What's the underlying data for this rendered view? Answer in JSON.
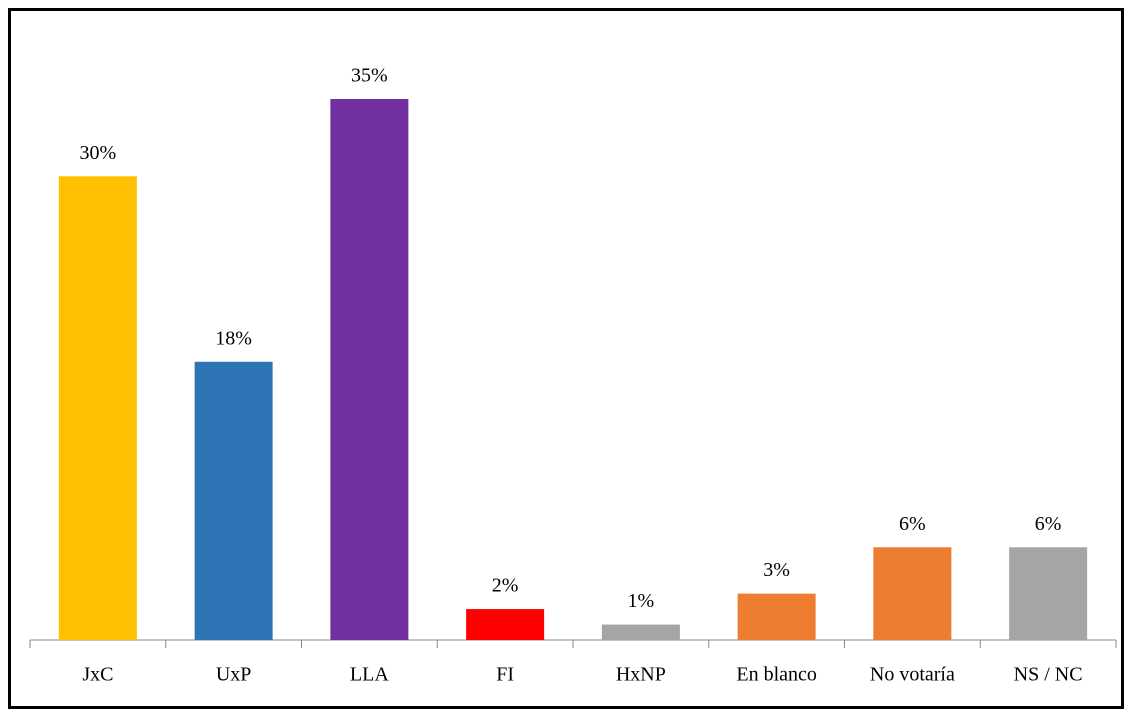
{
  "chart_data": {
    "type": "bar",
    "categories": [
      "JxC",
      "UxP",
      "LLA",
      "FI",
      "HxNP",
      "En blanco",
      "No votaría",
      "NS / NC"
    ],
    "values": [
      30,
      18,
      35,
      2,
      1,
      3,
      6,
      6
    ],
    "value_labels": [
      "30%",
      "18%",
      "35%",
      "2%",
      "1%",
      "3%",
      "6%",
      "6%"
    ],
    "colors": [
      "#ffc000",
      "#2e75b6",
      "#7030a0",
      "#ff0000",
      "#a5a5a5",
      "#ed7d31",
      "#ed7d31",
      "#a5a5a5"
    ],
    "grid": false
  }
}
